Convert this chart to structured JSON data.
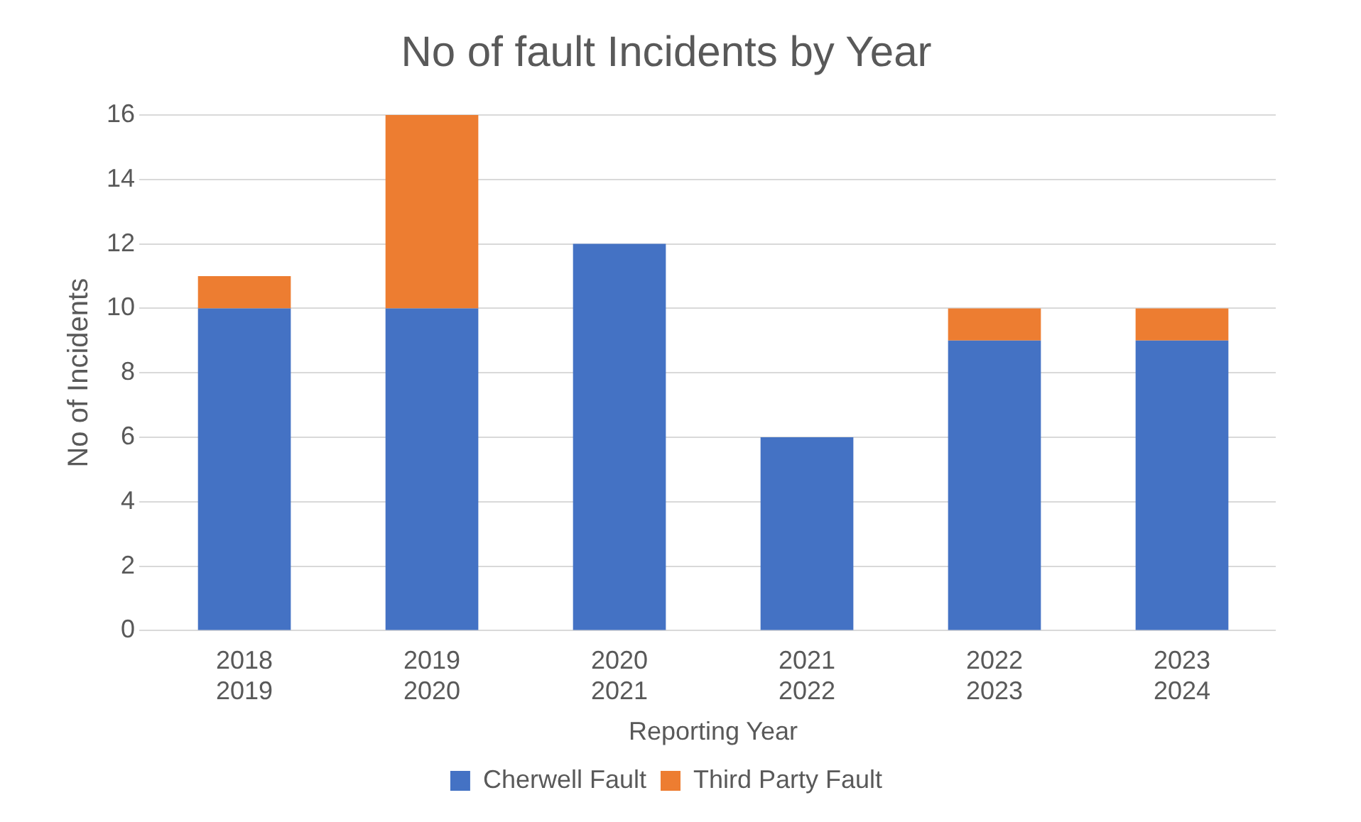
{
  "chart_data": {
    "type": "bar",
    "title": "No of fault Incidents by Year",
    "xlabel": "Reporting Year",
    "ylabel": "No of Incidents",
    "categories": [
      "2018 2019",
      "2019 2020",
      "2020 2021",
      "2021 2022",
      "2022 2023",
      "2023 2024"
    ],
    "stacked": true,
    "series": [
      {
        "name": "Cherwell Fault",
        "color": "#4472c4",
        "values": [
          10,
          10,
          12,
          6,
          9,
          9
        ]
      },
      {
        "name": "Third Party Fault",
        "color": "#ed7d31",
        "values": [
          1,
          6,
          null,
          null,
          1,
          1
        ]
      }
    ],
    "ylim": [
      0,
      16
    ],
    "yticks": [
      0,
      2,
      4,
      6,
      8,
      10,
      12,
      14,
      16
    ],
    "grid": "y",
    "legend": "bottom"
  }
}
